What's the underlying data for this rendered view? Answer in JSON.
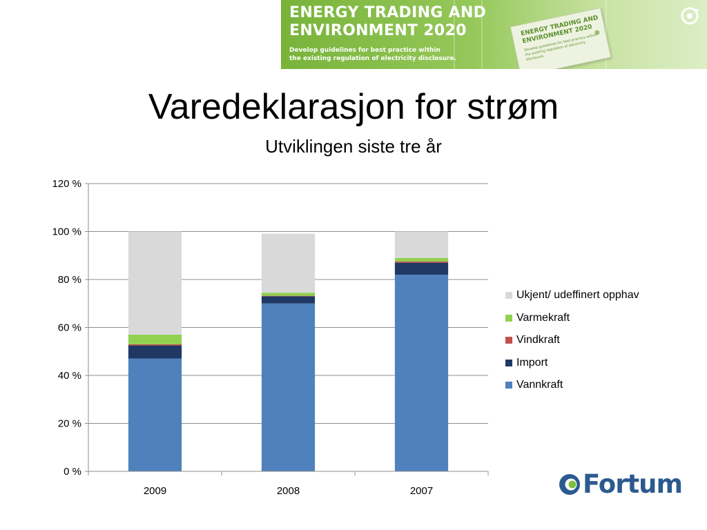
{
  "banner": {
    "title_lines": [
      "ENERGY TRADING AND",
      "ENVIRONMENT 2020"
    ],
    "subtitle_lines": [
      "Develop guidelines for best practice within",
      "the existing regulation of electricity disclosure."
    ],
    "tag_title_lines": [
      "ENERGY TRADING AND",
      "ENVIRONMENT 2020"
    ],
    "tag_subtitle_lines": [
      "Develop guidelines for best practice within",
      "the existing regulation of electricity disclosure."
    ],
    "icon": "recycle-arrow-icon"
  },
  "slide": {
    "title": "Varedeklarasjon for strøm",
    "subtitle": "Utviklingen siste tre år"
  },
  "logo": {
    "text": "Fortum",
    "icon": "fortum-logo-icon",
    "color": "#2c5a8f"
  },
  "chart_data": {
    "type": "bar",
    "stacked": true,
    "categories": [
      "2009",
      "2008",
      "2007"
    ],
    "series": [
      {
        "name": "Vannkraft",
        "color": "#4f81bd",
        "values": [
          47,
          70,
          82
        ]
      },
      {
        "name": "Import",
        "color": "#1f3864",
        "values": [
          5.5,
          3,
          5
        ]
      },
      {
        "name": "Vindkraft",
        "color": "#c0504d",
        "values": [
          0.5,
          0.2,
          0.5
        ]
      },
      {
        "name": "Varmekraft",
        "color": "#92d050",
        "values": [
          4,
          1.3,
          1.5
        ]
      },
      {
        "name": "Ukjent/ udeffinert opphav",
        "color": "#d9d9d9",
        "values": [
          43,
          24.6,
          11
        ]
      }
    ],
    "y_ticks": [
      "0 %",
      "20 %",
      "40 %",
      "60 %",
      "80 %",
      "100 %",
      "120 %"
    ],
    "ylim": [
      0,
      120
    ],
    "grid": true,
    "legend": "right",
    "legend_order": [
      "Ukjent/ udeffinert opphav",
      "Varmekraft",
      "Vindkraft",
      "Import",
      "Vannkraft"
    ]
  }
}
